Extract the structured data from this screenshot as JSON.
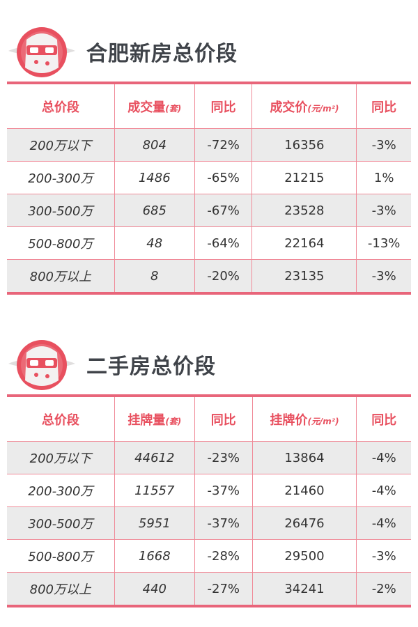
{
  "sections": [
    {
      "title": "合肥新房总价段",
      "table": {
        "header": [
          {
            "text": "总价段"
          },
          {
            "text": "成交量",
            "unit": "(套)"
          },
          {
            "text": "同比"
          },
          {
            "text": "成交价",
            "unit": "(元/m²)"
          },
          {
            "text": "同比"
          }
        ],
        "rows": [
          [
            "200万以下",
            "804",
            "-72%",
            "16356",
            "-3%"
          ],
          [
            "200-300万",
            "1486",
            "-65%",
            "21215",
            "1%"
          ],
          [
            "300-500万",
            "685",
            "-67%",
            "23528",
            "-3%"
          ],
          [
            "500-800万",
            "48",
            "-64%",
            "22164",
            "-13%"
          ],
          [
            "800万以上",
            "8",
            "-20%",
            "23135",
            "-3%"
          ]
        ]
      }
    },
    {
      "title": "二手房总价段",
      "table": {
        "header": [
          {
            "text": "总价段"
          },
          {
            "text": "挂牌量",
            "unit": "(套)"
          },
          {
            "text": "同比"
          },
          {
            "text": "挂牌价",
            "unit": "(元/m²)"
          },
          {
            "text": "同比"
          }
        ],
        "rows": [
          [
            "200万以下",
            "44612",
            "-23%",
            "13864",
            "-4%"
          ],
          [
            "200-300万",
            "11557",
            "-37%",
            "21460",
            "-4%"
          ],
          [
            "300-500万",
            "5951",
            "-37%",
            "26476",
            "-4%"
          ],
          [
            "500-800万",
            "1668",
            "-28%",
            "29500",
            "-3%"
          ],
          [
            "800万以上",
            "440",
            "-27%",
            "34241",
            "-2%"
          ]
        ]
      }
    }
  ]
}
